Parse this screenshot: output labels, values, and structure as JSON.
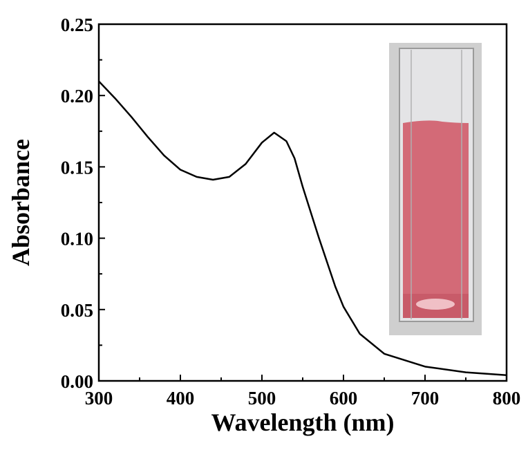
{
  "chart_data": {
    "type": "line",
    "x_label": "Wavelength (nm)",
    "y_label": "Absorbance",
    "x": [
      300,
      320,
      340,
      350,
      360,
      380,
      400,
      420,
      440,
      460,
      480,
      500,
      515,
      530,
      540,
      550,
      560,
      570,
      580,
      590,
      600,
      620,
      650,
      700,
      750,
      800
    ],
    "values": [
      0.21,
      0.198,
      0.185,
      0.178,
      0.171,
      0.158,
      0.148,
      0.143,
      0.141,
      0.143,
      0.152,
      0.167,
      0.174,
      0.168,
      0.156,
      0.136,
      0.118,
      0.1,
      0.083,
      0.066,
      0.052,
      0.033,
      0.019,
      0.01,
      0.006,
      0.004
    ],
    "color": "#000000",
    "xlim": [
      300,
      800
    ],
    "ylim": [
      0,
      0.25
    ],
    "xticks": [
      300,
      400,
      500,
      600,
      700,
      800
    ],
    "yticks": [
      {
        "value": 0,
        "label": "0.00"
      },
      {
        "value": 0.05,
        "label": "0.05"
      },
      {
        "value": 0.1,
        "label": "0.10"
      },
      {
        "value": 0.15,
        "label": "0.15"
      },
      {
        "value": 0.2,
        "label": "0.20"
      },
      {
        "value": 0.25,
        "label": "0.25"
      }
    ]
  }
}
